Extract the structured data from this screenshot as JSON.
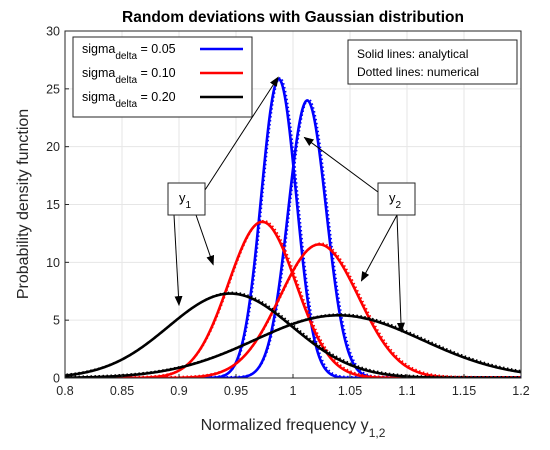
{
  "chart_data": {
    "type": "line",
    "title": "Random deviations with Gaussian distribution",
    "xlabel": "Normalized frequency y",
    "xlabel_sub": "1,2",
    "ylabel": "Probability density function",
    "xlim": [
      0.8,
      1.2
    ],
    "ylim": [
      0,
      30
    ],
    "xticks": [
      "0.8",
      "0.85",
      "0.9",
      "0.95",
      "1",
      "1.05",
      "1.1",
      "1.15",
      "1.2"
    ],
    "yticks": [
      "0",
      "5",
      "10",
      "15",
      "20",
      "25",
      "30"
    ],
    "grid": true,
    "legend": {
      "placement": "top-left",
      "entries": [
        {
          "prefix": "sigma",
          "sub": "delta",
          "suffix": " = 0.05",
          "color": "#0000FF"
        },
        {
          "prefix": "sigma",
          "sub": "delta",
          "suffix": " = 0.10",
          "color": "#FF0000"
        },
        {
          "prefix": "sigma",
          "sub": "delta",
          "suffix": " = 0.20",
          "color": "#000000"
        }
      ]
    },
    "note": [
      "Solid lines: analytical",
      "Dotted lines: numerical"
    ],
    "series": [
      {
        "group": "y1",
        "color": "#0000FF",
        "mean": 0.9875,
        "sd": 0.01543,
        "peak": 25.85
      },
      {
        "group": "y2",
        "color": "#0000FF",
        "mean": 1.0125,
        "sd": 0.01663,
        "peak": 24.0
      },
      {
        "group": "y1",
        "color": "#FF0000",
        "mean": 0.973,
        "sd": 0.0296,
        "peak": 13.5
      },
      {
        "group": "y2",
        "color": "#FF0000",
        "mean": 1.023,
        "sd": 0.0346,
        "peak": 11.55
      },
      {
        "group": "y1",
        "color": "#000000",
        "mean": 0.945,
        "sd": 0.0545,
        "peak": 7.3
      },
      {
        "group": "y2",
        "color": "#000000",
        "mean": 1.04,
        "sd": 0.0736,
        "peak": 5.42
      }
    ],
    "annotations": [
      {
        "label": "y",
        "sub": "1",
        "targets": [
          [
            0.987,
            26.0
          ],
          [
            0.93,
            9.8
          ],
          [
            0.9,
            6.3
          ]
        ]
      },
      {
        "label": "y",
        "sub": "2",
        "targets": [
          [
            1.01,
            20.8
          ],
          [
            1.06,
            8.4
          ],
          [
            1.095,
            4.0
          ]
        ]
      }
    ]
  }
}
